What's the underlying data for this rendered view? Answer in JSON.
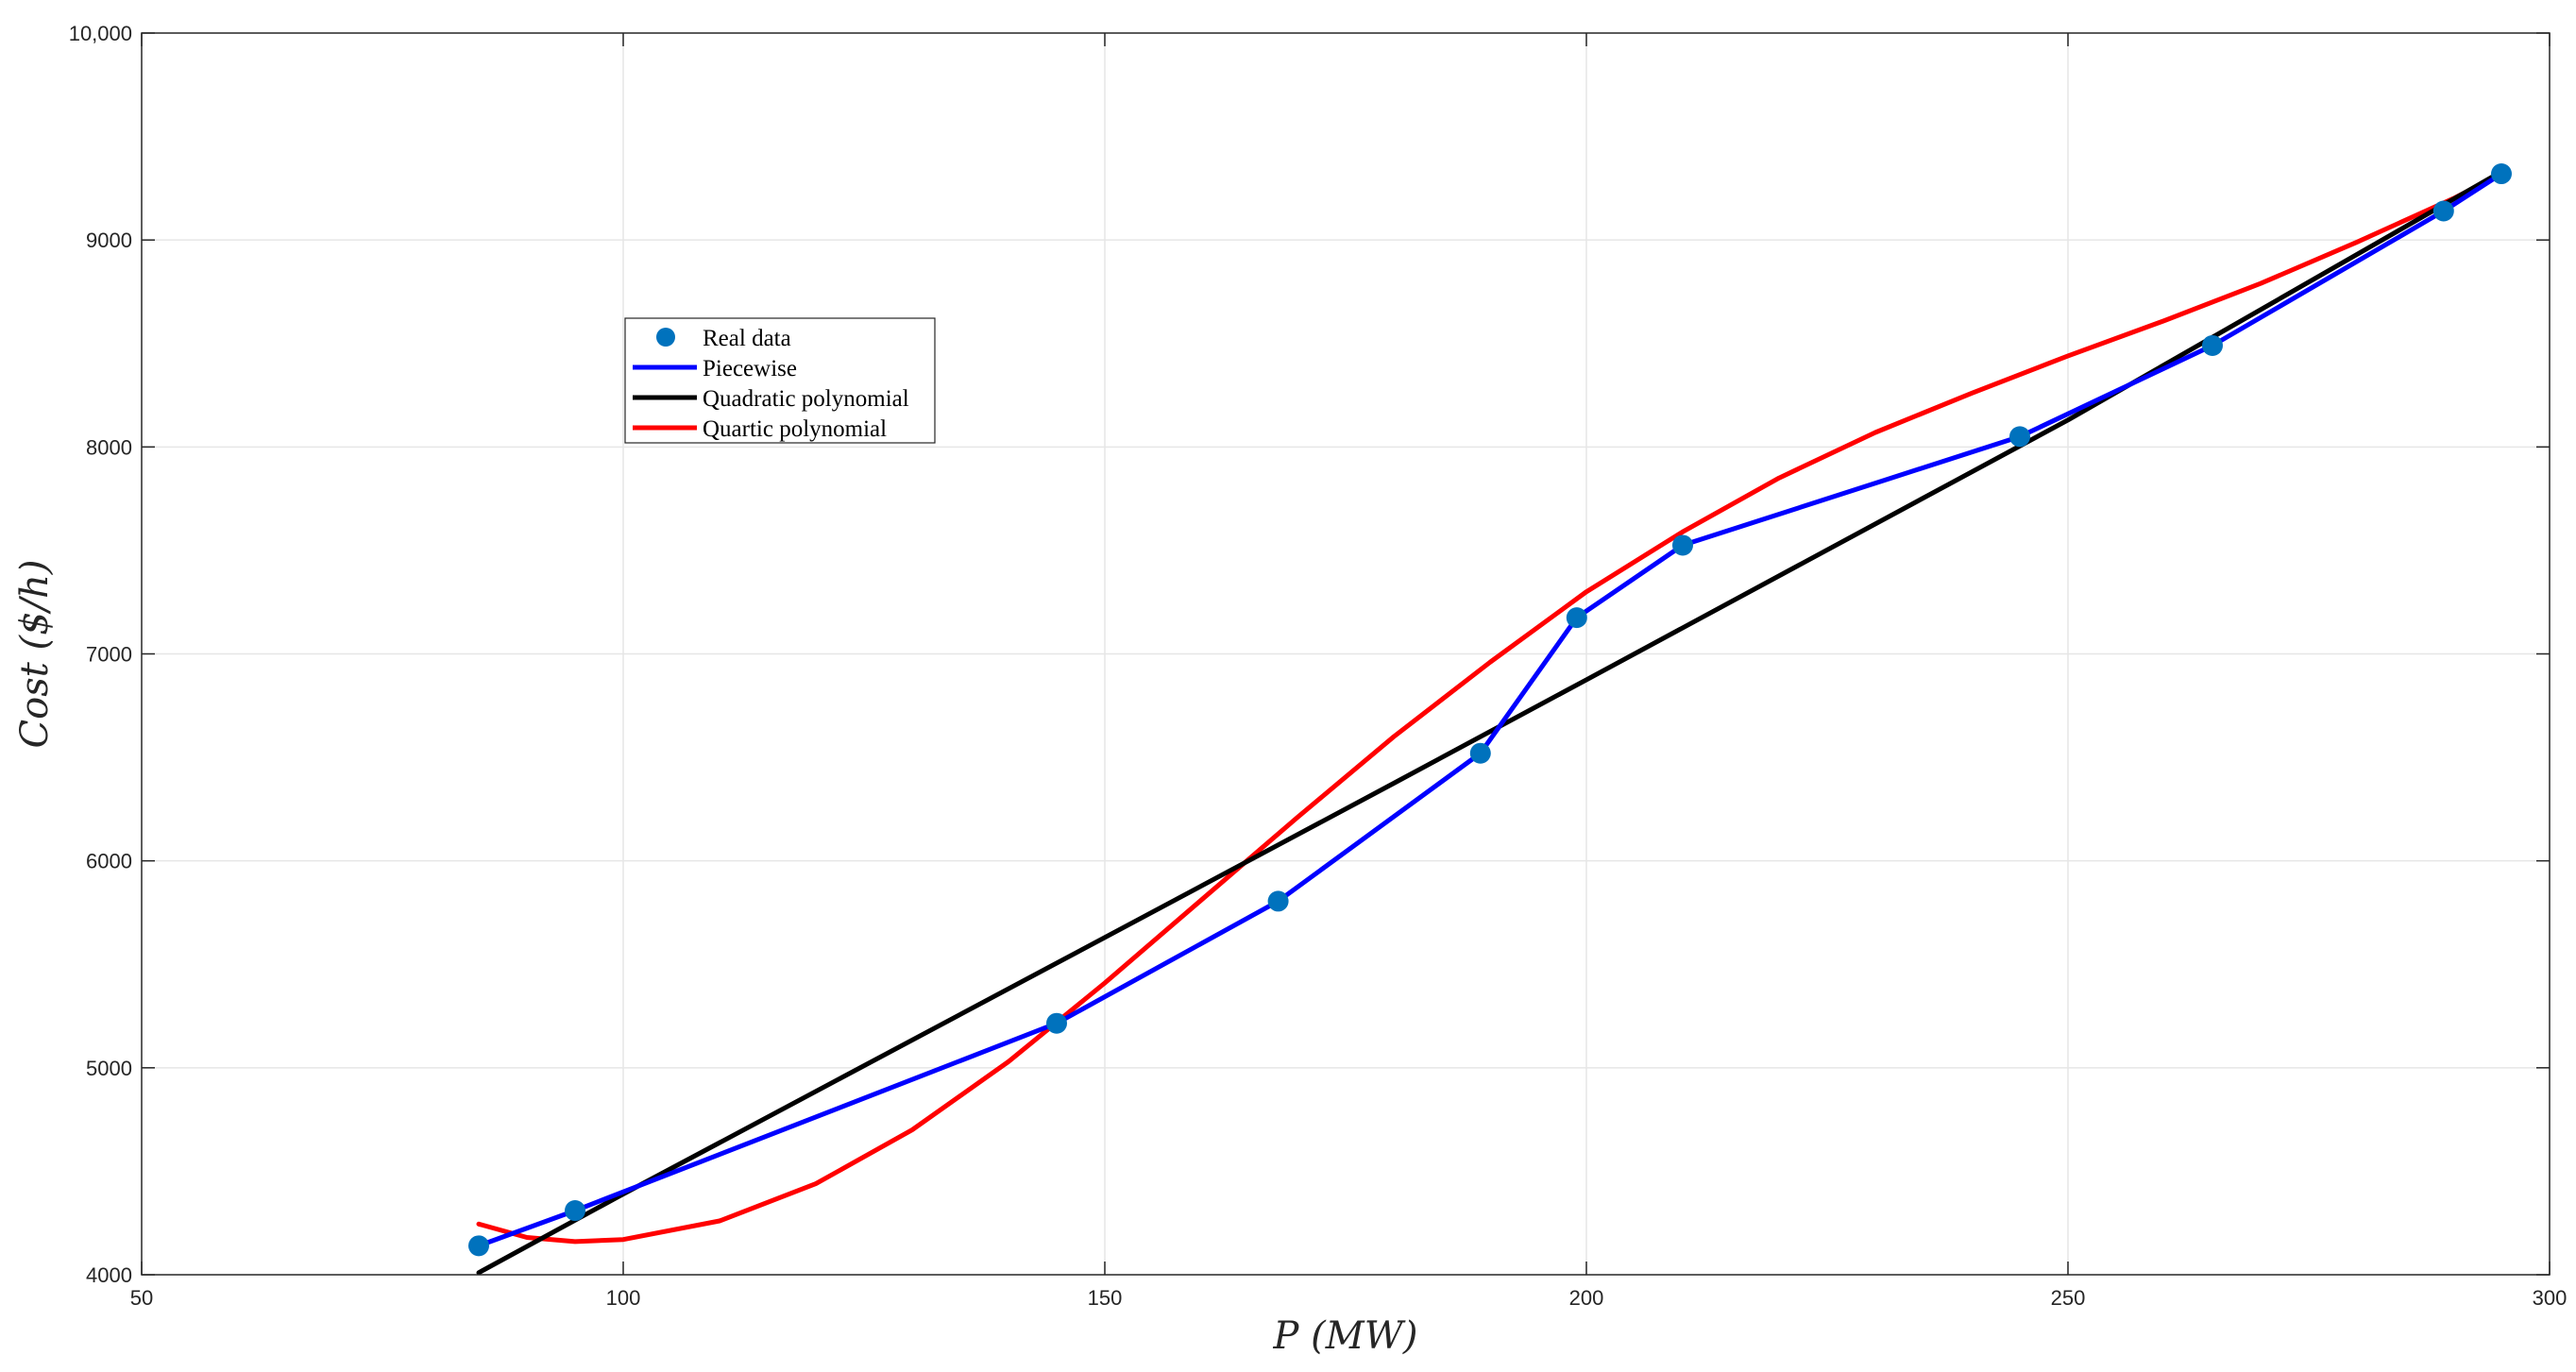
{
  "chart_data": {
    "type": "line",
    "title": "",
    "xlabel": "P (MW)",
    "ylabel": "Cost ($/h)",
    "xlim": [
      50,
      300
    ],
    "ylim": [
      4000,
      10000
    ],
    "x_ticks": [
      50,
      100,
      150,
      200,
      250,
      300
    ],
    "x_tick_labels": [
      "50",
      "100",
      "150",
      "200",
      "250",
      "300"
    ],
    "y_ticks": [
      4000,
      5000,
      6000,
      7000,
      8000,
      9000,
      10000
    ],
    "y_tick_labels": [
      "4000",
      "5000",
      "6000",
      "7000",
      "8000",
      "9000",
      "10,000"
    ],
    "grid": true,
    "legend_position": "upper-left",
    "series": [
      {
        "name": "Real data",
        "style": "markers",
        "color": "#0072bd",
        "points": [
          [
            85,
            4140
          ],
          [
            95,
            4310
          ],
          [
            145,
            5215
          ],
          [
            168,
            5805
          ],
          [
            189,
            6520
          ],
          [
            199,
            7175
          ],
          [
            210,
            7525
          ],
          [
            245,
            8050
          ],
          [
            265,
            8490
          ],
          [
            289,
            9140
          ],
          [
            295,
            9320
          ]
        ]
      },
      {
        "name": "Piecewise",
        "style": "line",
        "color": "#0000ff",
        "points": [
          [
            85,
            4140
          ],
          [
            95,
            4310
          ],
          [
            145,
            5215
          ],
          [
            168,
            5805
          ],
          [
            189,
            6520
          ],
          [
            199,
            7175
          ],
          [
            210,
            7525
          ],
          [
            245,
            8050
          ],
          [
            265,
            8490
          ],
          [
            289,
            9140
          ],
          [
            295,
            9320
          ]
        ]
      },
      {
        "name": "Quadratic polynomial",
        "style": "line",
        "color": "#000000",
        "points": [
          [
            85,
            4010
          ],
          [
            100,
            4390
          ],
          [
            150,
            5630
          ],
          [
            180,
            6375
          ],
          [
            200,
            6875
          ],
          [
            250,
            8130
          ],
          [
            295,
            9330
          ]
        ]
      },
      {
        "name": "Quartic polynomial",
        "style": "line",
        "color": "#ff0000",
        "points": [
          [
            85,
            4245
          ],
          [
            90,
            4180
          ],
          [
            95,
            4160
          ],
          [
            100,
            4170
          ],
          [
            110,
            4260
          ],
          [
            120,
            4440
          ],
          [
            130,
            4700
          ],
          [
            140,
            5030
          ],
          [
            150,
            5410
          ],
          [
            160,
            5810
          ],
          [
            170,
            6210
          ],
          [
            180,
            6600
          ],
          [
            190,
            6960
          ],
          [
            200,
            7300
          ],
          [
            210,
            7590
          ],
          [
            220,
            7850
          ],
          [
            230,
            8070
          ],
          [
            240,
            8260
          ],
          [
            250,
            8440
          ],
          [
            260,
            8610
          ],
          [
            270,
            8790
          ],
          [
            280,
            8990
          ],
          [
            290,
            9200
          ],
          [
            295,
            9320
          ]
        ]
      }
    ]
  }
}
